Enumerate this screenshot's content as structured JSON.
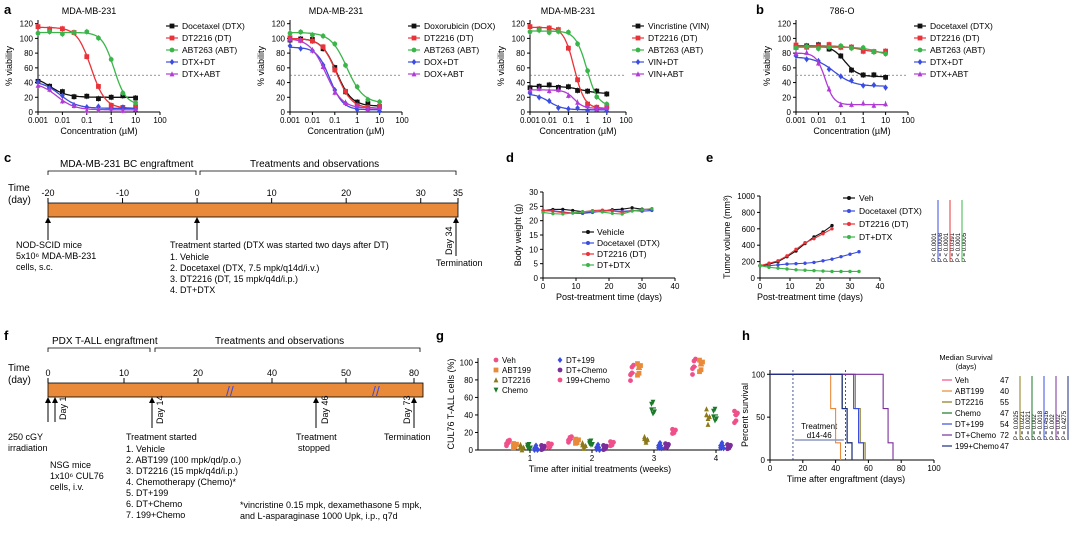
{
  "panel_letters": {
    "a": "a",
    "b": "b",
    "c": "c",
    "d": "d",
    "e": "e",
    "f": "f",
    "g": "g",
    "h": "h"
  },
  "colors": {
    "orange": "#E98A3A",
    "black": "#111111",
    "red": "#E8333A",
    "green": "#3BB54A",
    "blue": "#3B4DE0",
    "purple": "#B23BD6",
    "pink": "#F0508A",
    "olive": "#8C7A1A",
    "darkgreen": "#1B7A2A",
    "navy": "#1A2E80",
    "violet": "#7A2E9A"
  },
  "chart_data": [
    {
      "id": "a1",
      "type": "line",
      "title": "MDA-MB-231",
      "xlabel": "Concentration (µM)",
      "ylabel": "% viability",
      "xticks": [
        "0.001",
        "0.01",
        "0.1",
        "1",
        "10",
        "100"
      ],
      "yticks": [
        "0",
        "20",
        "40",
        "60",
        "80",
        "100",
        "120"
      ],
      "ylim": [
        0,
        125
      ],
      "legend": [
        "Docetaxel (DTX)",
        "DT2216 (DT)",
        "ABT263 (ABT)",
        "DTX+DT",
        "DTX+ABT"
      ]
    },
    {
      "id": "a2",
      "type": "line",
      "title": "MDA-MB-231",
      "xlabel": "Concentration (µM)",
      "ylabel": "% viability",
      "xticks": [
        "0.001",
        "0.01",
        "0.1",
        "1",
        "10",
        "100"
      ],
      "yticks": [
        "0",
        "20",
        "40",
        "60",
        "80",
        "100",
        "120"
      ],
      "ylim": [
        0,
        125
      ],
      "legend": [
        "Doxorubicin (DOX)",
        "DT2216 (DT)",
        "ABT263 (ABT)",
        "DOX+DT",
        "DOX+ABT"
      ]
    },
    {
      "id": "a3",
      "type": "line",
      "title": "MDA-MB-231",
      "xlabel": "Concentration (µM)",
      "ylabel": "% viability",
      "xticks": [
        "0.001",
        "0.01",
        "0.1",
        "1",
        "10",
        "100"
      ],
      "yticks": [
        "0",
        "20",
        "40",
        "60",
        "80",
        "100",
        "120"
      ],
      "ylim": [
        0,
        125
      ],
      "legend": [
        "Vincristine (VIN)",
        "DT2216 (DT)",
        "ABT263 (ABT)",
        "VIN+DT",
        "VIN+ABT"
      ]
    },
    {
      "id": "b",
      "type": "line",
      "title": "786-O",
      "xlabel": "Concentration (µM)",
      "ylabel": "% viability",
      "xticks": [
        "0.001",
        "0.01",
        "0.1",
        "1",
        "10",
        "100"
      ],
      "yticks": [
        "0",
        "20",
        "40",
        "60",
        "80",
        "100",
        "120"
      ],
      "ylim": [
        0,
        125
      ],
      "legend": [
        "Docetaxel (DTX)",
        "DT2216 (DT)",
        "ABT263 (ABT)",
        "DTX+DT",
        "DTX+ABT"
      ]
    },
    {
      "id": "d",
      "type": "line",
      "xlabel": "Post-treatment time (days)",
      "ylabel": "Body weight (g)",
      "xticks": [
        "0",
        "10",
        "20",
        "30",
        "40"
      ],
      "yticks": [
        "0",
        "5",
        "10",
        "15",
        "20",
        "25",
        "30"
      ],
      "ylim": [
        0,
        30
      ],
      "legend": [
        "Vehicle",
        "Docetaxel (DTX)",
        "DT2216 (DT)",
        "DT+DTX"
      ]
    },
    {
      "id": "e",
      "type": "line",
      "xlabel": "Post-treatment time (days)",
      "ylabel": "Tumor volume (mm³)",
      "xticks": [
        "0",
        "10",
        "20",
        "30",
        "40"
      ],
      "yticks": [
        "0",
        "200",
        "400",
        "600",
        "800",
        "1000"
      ],
      "ylim": [
        0,
        1000
      ],
      "legend": [
        "Veh",
        "Docetaxel (DTX)",
        "DT2216 (DT)",
        "DT+DTX"
      ],
      "pvalues": [
        "P < 0.0001",
        "P = 0.0008",
        "P < 0.0001",
        "P = 0.0391",
        "P < 0.0001",
        "P = 0.0005"
      ]
    },
    {
      "id": "g",
      "type": "scatter",
      "xlabel": "Time after initial treatments (weeks)",
      "ylabel": "CUL76 T-ALL cells (%)",
      "xticks": [
        "1",
        "2",
        "3",
        "4"
      ],
      "yticks": [
        "0",
        "20",
        "40",
        "60",
        "80",
        "100"
      ],
      "ylim": [
        0,
        105
      ],
      "legend": [
        "Veh",
        "ABT199",
        "DT2216",
        "Chemo",
        "DT+199",
        "DT+Chemo",
        "199+Chemo"
      ]
    },
    {
      "id": "h",
      "type": "line",
      "xlabel": "Time after engraftment (days)",
      "ylabel": "Percent survival",
      "xticks": [
        "0",
        "20",
        "40",
        "60",
        "80",
        "100"
      ],
      "yticks": [
        "0",
        "50",
        "100"
      ],
      "ylim": [
        0,
        105
      ],
      "median_header": "Median Survival\n(days)",
      "legend": [
        {
          "name": "Veh",
          "median": "47"
        },
        {
          "name": "ABT199",
          "median": "40"
        },
        {
          "name": "DT2216",
          "median": "55"
        },
        {
          "name": "Chemo",
          "median": "47"
        },
        {
          "name": "DT+199",
          "median": "54"
        },
        {
          "name": "DT+Chemo",
          "median": "72"
        },
        {
          "name": "199+Chemo",
          "median": "47"
        }
      ],
      "treatment_label": "Treatment\nd14-46",
      "pvalues": [
        "P = 0.0025",
        "P = 0.0221",
        "P = 0.0021",
        "P = 0.002",
        "P = 0.0018",
        "P = 0.4516",
        "P = 0.002",
        "P = 0.002",
        "P = 0.4275"
      ]
    }
  ],
  "panel_c": {
    "time_label": "Time\n(day)",
    "engraft_label": "MDA-MB-231  BC engraftment",
    "treat_label": "Treatments and observations",
    "ticks": [
      "-20",
      "-10",
      "0",
      "10",
      "20",
      "30",
      "35"
    ],
    "mice": "NOD-SCID mice\n5x10⁶ MDA-MB-231\ncells, s.c.",
    "started": "Treatment started (DTX was started two days after DT)",
    "items": [
      "1. Vehicle",
      "2. Docetaxel (DTX, 7.5 mpk/q14d/i.v.)",
      "3. DT2216 (DT, 15 mpk/q4d/i.p.)",
      "4. DT+DTX"
    ],
    "day34": "Day 34",
    "termination": "Termination"
  },
  "panel_f": {
    "time_label": "Time\n(day)",
    "engraft_label": "PDX T-ALL engraftment",
    "treat_label": "Treatments and observations",
    "ticks": [
      "0",
      "10",
      "20",
      "40",
      "50",
      "80"
    ],
    "day1": "Day 1",
    "day14": "Day 14",
    "day46": "Day 46",
    "day73": "Day 73",
    "irradiation": "250 cGY\nirradiation",
    "mice": "NSG mice\n1x10⁶ CUL76\ncells, i.v.",
    "started": "Treatment started",
    "items": [
      "1. Vehicle",
      "2. ABT199 (100 mpk/qd/p.o.)",
      "3. DT2216 (15 mpk/q4d/i.p.)",
      "4. Chemotherapy (Chemo)*",
      "5. DT+199",
      "6. DT+Chemo",
      "7. 199+Chemo"
    ],
    "stopped": "Treatment\nstopped",
    "termination": "Termination",
    "footnote": "*vincristine 0.15 mpk, dexamethasone 5 mpk,\nand L-asparaginase 1000 Upk, i.p., q7d"
  }
}
